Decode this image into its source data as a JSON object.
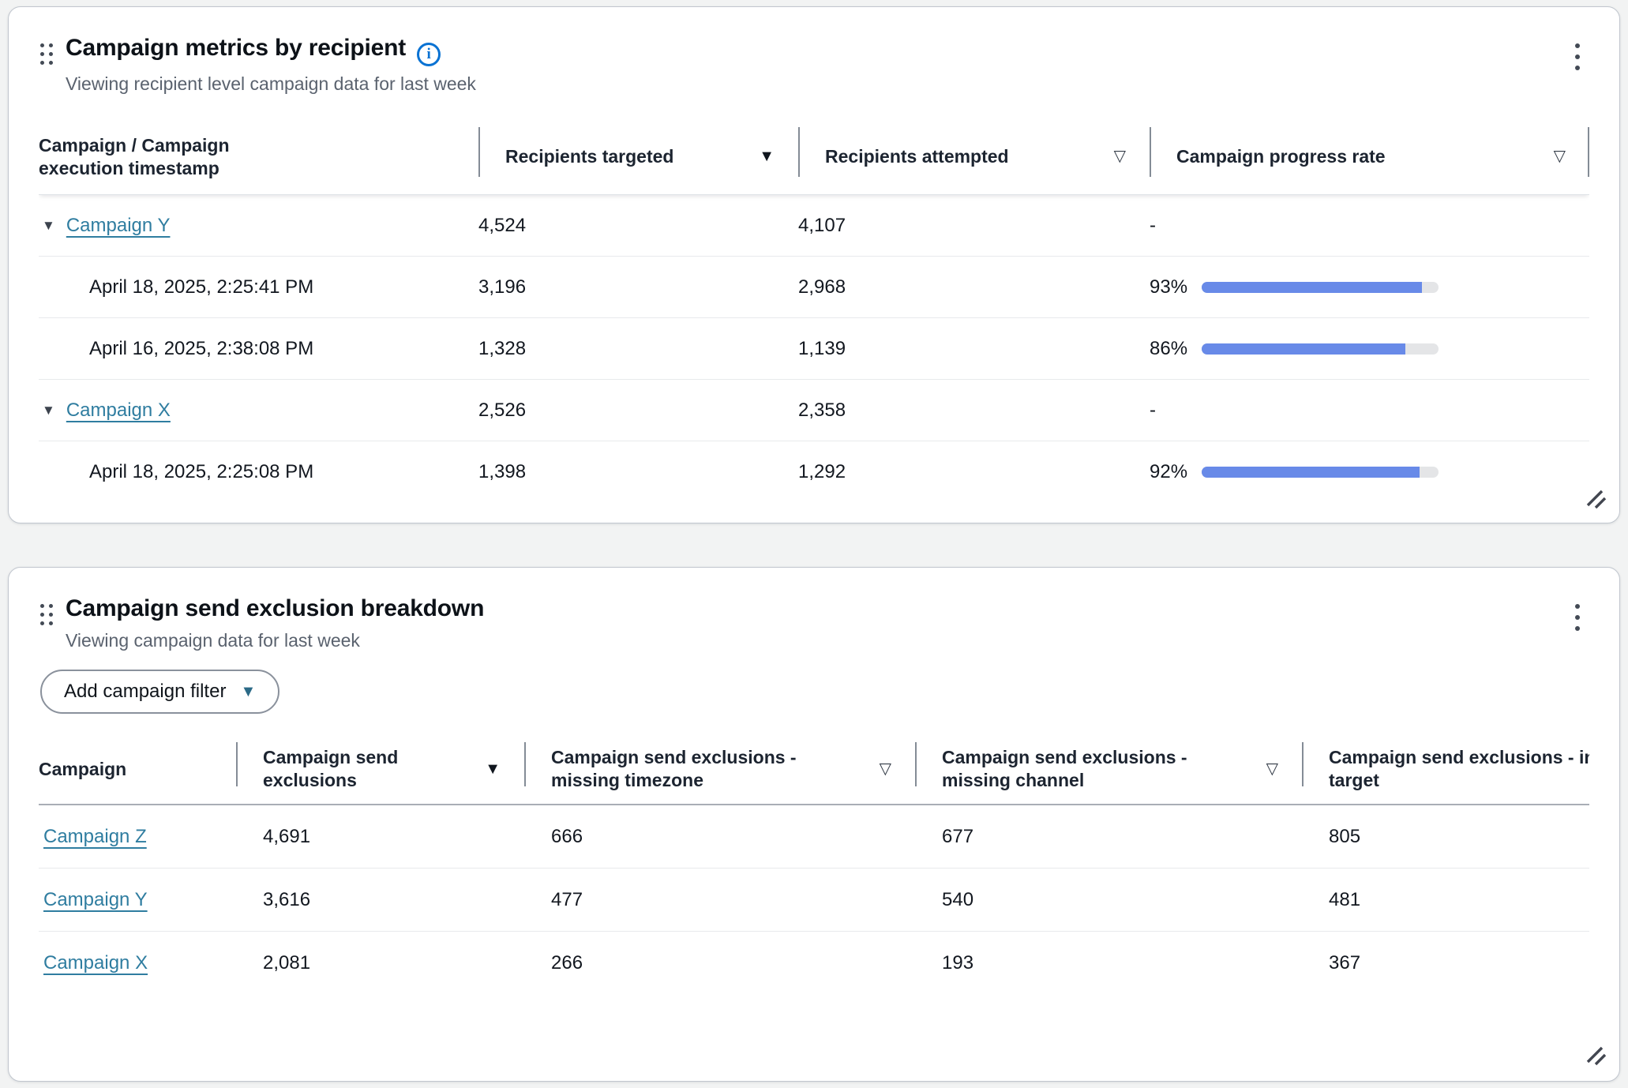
{
  "colors": {
    "page_bg": "#f2f3f3",
    "card_bg": "#ffffff",
    "card_border": "#c1c6ce",
    "link": "#2f7da0",
    "progress_fill": "#688ae8",
    "progress_track": "#e4e5e7",
    "info": "#0972d3",
    "caret": "#2b6a87"
  },
  "icons": {
    "info": "i",
    "sort_descending": "▼",
    "sortable": "▽",
    "row_expanded": "▼",
    "dropdown_caret": "▼"
  },
  "cards": {
    "metrics": {
      "title": "Campaign metrics by recipient",
      "subtitle": "Viewing recipient level campaign data for last week",
      "columns": [
        {
          "label": "Campaign / Campaign execution timestamp",
          "sort": "none"
        },
        {
          "label": "Recipients targeted",
          "sort": "descending"
        },
        {
          "label": "Recipients attempted",
          "sort": "sortable"
        },
        {
          "label": "Campaign progress rate",
          "sort": "sortable"
        }
      ],
      "rows": [
        {
          "kind": "campaign",
          "name": "Campaign Y",
          "recipients_targeted": "4,524",
          "recipients_attempted": "4,107",
          "progress": "-"
        },
        {
          "kind": "execution",
          "timestamp": "April 18, 2025, 2:25:41 PM",
          "recipients_targeted": "3,196",
          "recipients_attempted": "2,968",
          "progress_label": "93%",
          "progress_pct": 93
        },
        {
          "kind": "execution",
          "timestamp": "April 16, 2025, 2:38:08 PM",
          "recipients_targeted": "1,328",
          "recipients_attempted": "1,139",
          "progress_label": "86%",
          "progress_pct": 86
        },
        {
          "kind": "campaign",
          "name": "Campaign X",
          "recipients_targeted": "2,526",
          "recipients_attempted": "2,358",
          "progress": "-"
        },
        {
          "kind": "execution",
          "timestamp": "April 18, 2025, 2:25:08 PM",
          "recipients_targeted": "1,398",
          "recipients_attempted": "1,292",
          "progress_label": "92%",
          "progress_pct": 92
        }
      ]
    },
    "exclusions": {
      "title": "Campaign send exclusion breakdown",
      "subtitle": "Viewing campaign data for last week",
      "filter_button": "Add campaign filter",
      "columns": [
        {
          "label": "Campaign",
          "sort": "none"
        },
        {
          "label": "Campaign send exclusions",
          "sort": "descending"
        },
        {
          "label": "Campaign send exclusions - missing timezone",
          "sort": "sortable"
        },
        {
          "label": "Campaign send exclusions - missing channel",
          "sort": "sortable"
        },
        {
          "label": "Campaign send exclusions - invalid target",
          "sort": "none"
        }
      ],
      "rows": [
        {
          "campaign": "Campaign Z",
          "send_exclusions": "4,691",
          "missing_timezone": "666",
          "missing_channel": "677",
          "invalid_target": "805"
        },
        {
          "campaign": "Campaign Y",
          "send_exclusions": "3,616",
          "missing_timezone": "477",
          "missing_channel": "540",
          "invalid_target": "481"
        },
        {
          "campaign": "Campaign X",
          "send_exclusions": "2,081",
          "missing_timezone": "266",
          "missing_channel": "193",
          "invalid_target": "367"
        }
      ]
    }
  }
}
